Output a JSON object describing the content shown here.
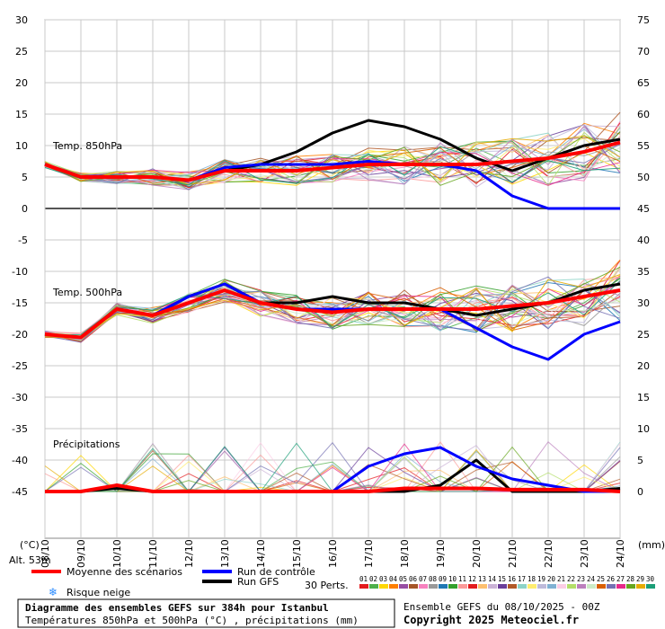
{
  "chart_data": {
    "type": "line",
    "x": [
      "09/10",
      "10/10",
      "11/10",
      "12/10",
      "13/10",
      "14/10",
      "15/10",
      "16/10",
      "17/10",
      "18/10",
      "19/10",
      "20/10",
      "21/10",
      "22/10",
      "23/10",
      "24/10"
    ],
    "x_first_label": "08/10",
    "ylim_left": [
      -45,
      30
    ],
    "ylim_right": [
      0,
      75
    ],
    "yticks_left": [
      30,
      25,
      20,
      15,
      10,
      5,
      0,
      -5,
      -10,
      -15,
      -20,
      -25,
      -30,
      -35,
      -40,
      -45
    ],
    "yticks_right": [
      75,
      70,
      65,
      60,
      55,
      50,
      45,
      40,
      35,
      30,
      25,
      20,
      15,
      10,
      5,
      0
    ],
    "unit_left": "(°C)",
    "unit_right": "(mm)",
    "alt_label": "Alt. 53m",
    "panels": {
      "t850": "Temp. 850hPa",
      "t500": "Temp. 500hPa",
      "precip": "Précipitations"
    },
    "series": [
      {
        "name": "Moyenne des scénarios",
        "color": "#ff0000",
        "t850": [
          7,
          5,
          5,
          5,
          4.5,
          6,
          6,
          6,
          6.5,
          7,
          7,
          7,
          7,
          7.5,
          8,
          9,
          10.5
        ],
        "t500": [
          -20,
          -20.5,
          -16,
          -17,
          -15,
          -13,
          -15,
          -16,
          -16.5,
          -16,
          -16,
          -16,
          -16,
          -15.5,
          -15,
          -14,
          -13
        ],
        "precip": [
          0,
          0,
          1,
          0,
          0,
          0,
          0,
          0,
          0,
          0,
          0.5,
          0.5,
          0.5,
          0.3,
          0.3,
          0.3,
          0
        ]
      },
      {
        "name": "Run de contrôle",
        "color": "#0000ff",
        "t850": [
          7,
          5,
          5,
          5,
          4.5,
          6.5,
          7,
          7,
          7,
          7.5,
          7,
          7,
          6,
          2,
          0,
          0,
          0
        ],
        "t500": [
          -20,
          -20.5,
          -16,
          -17,
          -14,
          -12,
          -15,
          -16,
          -16,
          -16,
          -16,
          -16,
          -19,
          -22,
          -24,
          -20,
          -18
        ],
        "precip": [
          0,
          0,
          1,
          0,
          0,
          0,
          0,
          0,
          0,
          4,
          6,
          7,
          4,
          2,
          1,
          0,
          0
        ]
      },
      {
        "name": "Run GFS",
        "color": "#000000",
        "t850": [
          7,
          5,
          5,
          5,
          4.5,
          6,
          7,
          9,
          12,
          14,
          13,
          11,
          8,
          6,
          8,
          10,
          11
        ],
        "t500": [
          -20,
          -20.5,
          -16,
          -17,
          -14,
          -12,
          -15,
          -15,
          -14,
          -15,
          -15,
          -16,
          -17,
          -16,
          -15,
          -13,
          -12
        ],
        "precip": [
          0,
          0,
          0.5,
          0,
          0,
          0,
          0,
          0,
          0,
          0,
          0,
          1,
          5,
          0,
          0,
          0,
          0.5
        ]
      }
    ],
    "perturbations": {
      "label": "30 Perts.",
      "ids": [
        "01",
        "02",
        "03",
        "04",
        "05",
        "06",
        "07",
        "08",
        "09",
        "10",
        "11",
        "12",
        "13",
        "14",
        "15",
        "16",
        "17",
        "18",
        "19",
        "20",
        "21",
        "22",
        "23",
        "24",
        "25",
        "26",
        "27",
        "28",
        "29",
        "30"
      ],
      "colors": [
        "#e41a1c",
        "#4daf4a",
        "#ffd700",
        "#ff7f00",
        "#984ea3",
        "#a65628",
        "#f781bf",
        "#999999",
        "#1f78b4",
        "#33a02c",
        "#fb9a99",
        "#e31a1c",
        "#fdbf6f",
        "#cab2d6",
        "#6a3d9a",
        "#b15928",
        "#8dd3c7",
        "#ffed6f",
        "#bebada",
        "#80b1d3",
        "#fccde5",
        "#b3de69",
        "#bc80bd",
        "#ccebc5",
        "#d95f02",
        "#7570b3",
        "#e7298a",
        "#66a61e",
        "#e6ab02",
        "#1b9e77"
      ]
    },
    "legend": {
      "mean": "Moyenne des scénarios",
      "control": "Run de contrôle",
      "gfs": "Run GFS",
      "snow": "Risque neige"
    },
    "title": "Diagramme des ensembles GEFS sur 384h pour Istanbul",
    "subtitle": "Températures 850hPa et 500hPa (°C) , précipitations (mm)",
    "run_info": "Ensemble GEFS du 08/10/2025 - 00Z",
    "copyright": "Copyright 2025 Meteociel.fr"
  }
}
